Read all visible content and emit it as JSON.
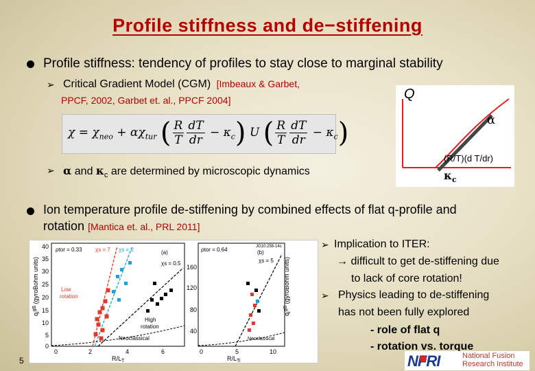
{
  "title": "Profile stiffness and de−stiffening",
  "bullet1": {
    "text": "Profile stiffness: tendency of profiles to stay close to marginal stability",
    "sub1_text": "Critical Gradient Model (CGM)",
    "sub1_ref_a": "[Imbeaux & Garbet,",
    "sub1_ref_b": "PPCF, 2002, Garbet et. al., PPCF 2004]",
    "equation": {
      "lhs": "χ = χ",
      "neo": "neo",
      "plus": " + αχ",
      "tur": "tur",
      "R": "R",
      "dT": "dT",
      "T": "T",
      "dr": "dr",
      "minus": " − κ",
      "c": "c",
      "U": "U"
    },
    "sub2_alpha": "α",
    "sub2_and": "and",
    "sub2_kappa": "κ",
    "sub2_c": "c",
    "sub2_rest": "are determined by microscopic dynamics"
  },
  "qplot": {
    "ylabel": "Q",
    "alpha_label": "α",
    "xlabel": "(R/T)(d T/dr)",
    "kappa_label": "κ",
    "kappa_sub": "c",
    "colors": {
      "curve": "#e02020",
      "slope": "#444444",
      "axis": "#e02020"
    }
  },
  "bullet2": {
    "text_a": "Ion temperature profile de-stiffening by combined effects of flat q-profile and",
    "text_b": "rotation",
    "ref": "[Mantica et. al., PRL 2011]"
  },
  "plots": {
    "left": {
      "ytick_top": "40",
      "ylabel": "qi gB (gyroBohm units)",
      "ylabel_text": "q",
      "ylabel_sup": "gB",
      "ylabel_sub": "i",
      "ylabel_tail": " (gyroBohm units)",
      "yticks": [
        "40",
        "35",
        "30",
        "25",
        "20",
        "15",
        "10",
        "5",
        "0"
      ],
      "xticks": [
        "0",
        "2",
        "4",
        "6"
      ],
      "xlabel": "R/LT",
      "xlabel_main": "R/L",
      "xlabel_sub": "T",
      "panel": "(a)",
      "rho": "ρtor = 0.33",
      "chi7": "χs = 7",
      "chi2": "χs = 2",
      "chi05": "χs = 0.5",
      "low_rotation_a": "Low",
      "low_rotation_b": "rotation",
      "high_rotation_a": "High",
      "high_rotation_b": "rotation",
      "neoclassical": "Neoclassical"
    },
    "right": {
      "ylabel_text": "q",
      "ylabel_sup": "gB",
      "ylabel_sub": "i",
      "ylabel_tail": " (gyroBohm units)",
      "yticks": [
        "160",
        "120",
        "80",
        "40"
      ],
      "xticks": [
        "0",
        "5",
        "10"
      ],
      "xlabel_main": "R/L",
      "xlabel_sub": "Ti",
      "panel": "(b)",
      "rho": "ρtor = 0.64",
      "chi5": "χs = 5",
      "neoclassical": "Neoclassical",
      "jg": "JG10.258-14c"
    }
  },
  "right_text": {
    "l1": "Implication to ITER:",
    "l2": "difficult to get de-stiffening due",
    "l3": "to lack of core rotation!",
    "l4": "Physics leading to de-stiffening",
    "l5": "has not been fully explored",
    "l6": "- role of flat q",
    "l7": "- rotation vs. torque"
  },
  "page_number": "5",
  "logo": {
    "name": "NFRI",
    "line1": "National Fusion",
    "line2": "Research Institute"
  }
}
